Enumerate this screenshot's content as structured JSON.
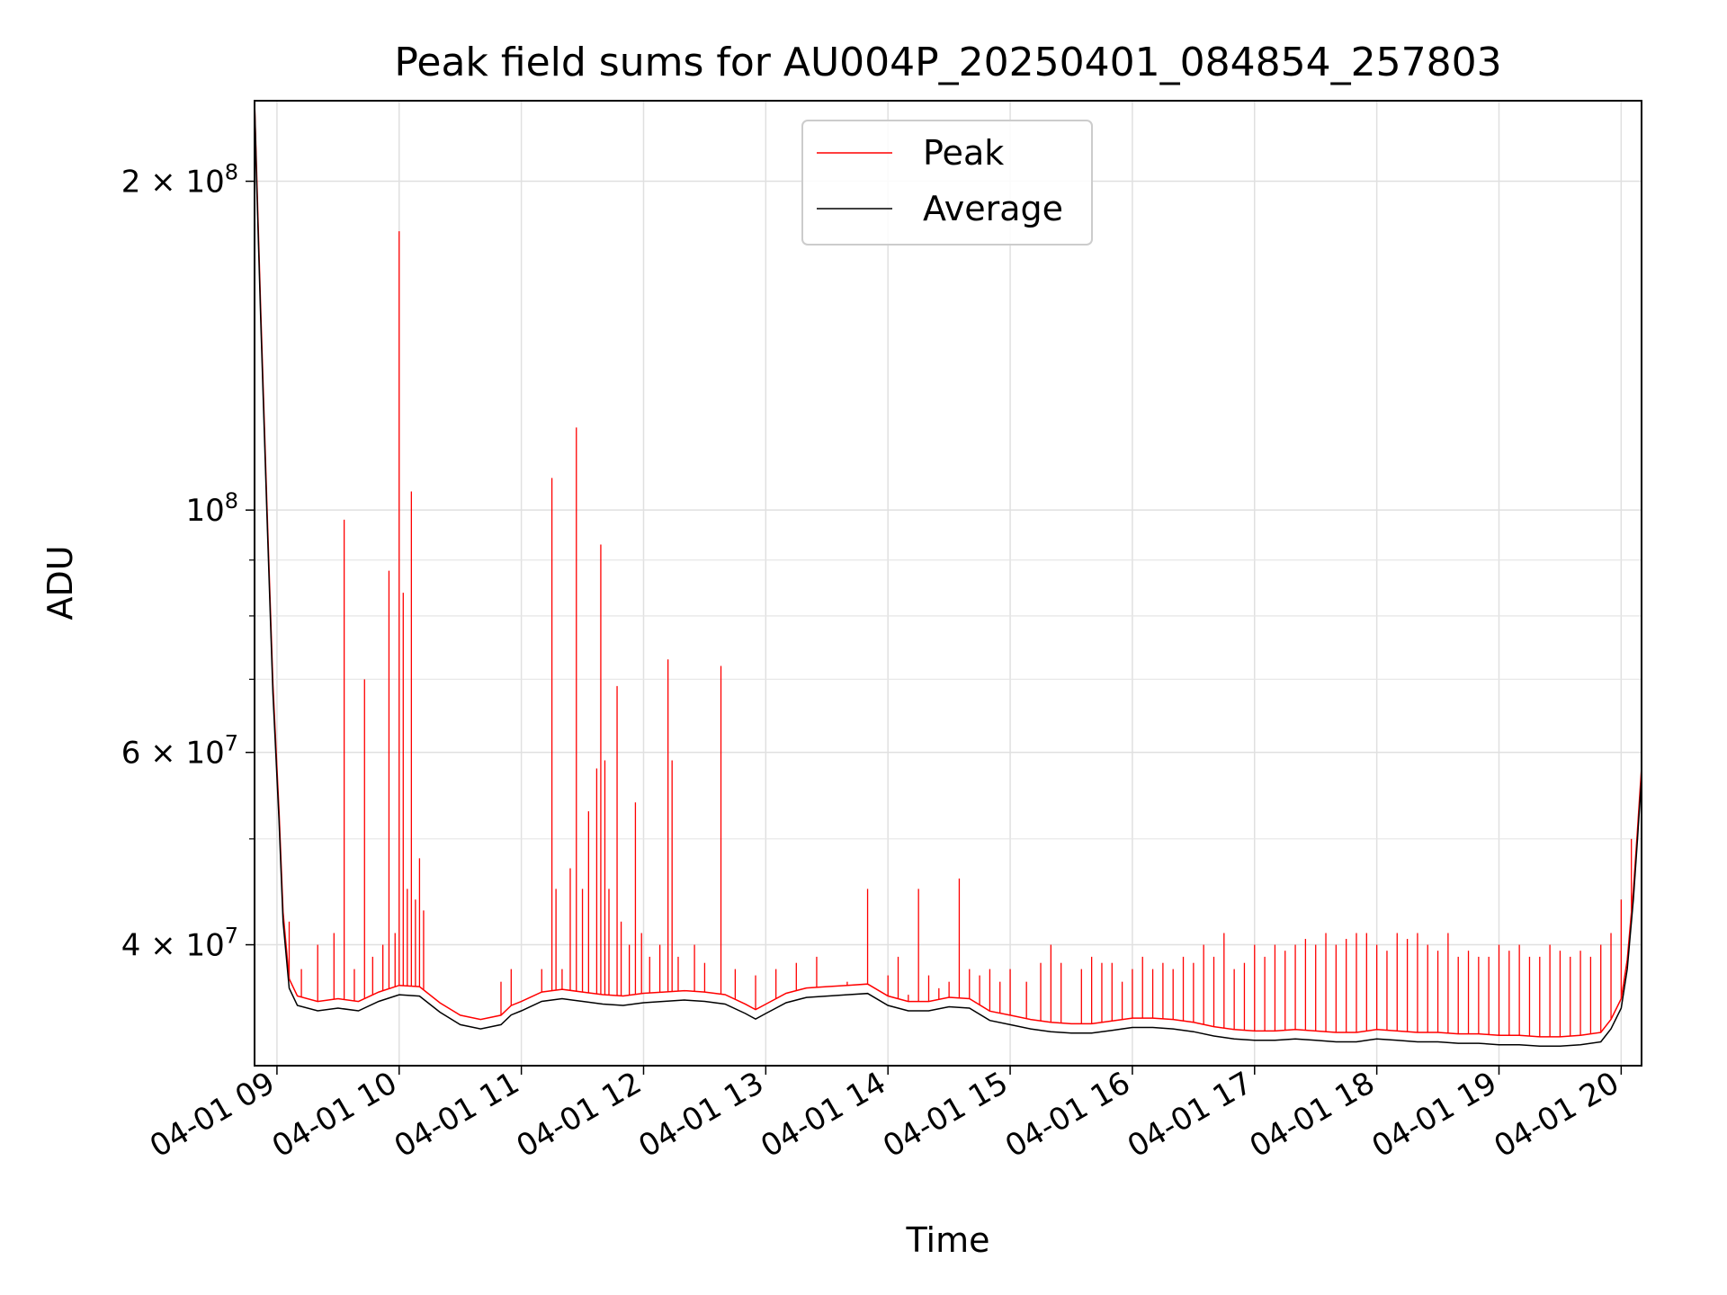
{
  "chart_data": {
    "type": "line",
    "title": "Peak field sums for AU004P_20250401_084854_257803",
    "xlabel": "Time",
    "ylabel": "ADU",
    "y_scale": "log",
    "ylim": [
      31000000,
      237000000
    ],
    "x_range": [
      "2025-04-01 08:49",
      "2025-04-01 20:10"
    ],
    "grid": true,
    "legend_position": "upper center",
    "x_ticks": [
      "04-01 09",
      "04-01 10",
      "04-01 11",
      "04-01 12",
      "04-01 13",
      "04-01 14",
      "04-01 15",
      "04-01 16",
      "04-01 17",
      "04-01 18",
      "04-01 19",
      "04-01 20"
    ],
    "x_tick_hours": [
      9,
      10,
      11,
      12,
      13,
      14,
      15,
      16,
      17,
      18,
      19,
      20
    ],
    "y_major_ticks": [
      {
        "value": 200000000,
        "mantissa": "2",
        "exponent": "8"
      },
      {
        "value": 100000000,
        "mantissa": "",
        "exponent": "8"
      },
      {
        "value": 60000000,
        "mantissa": "6",
        "exponent": "7"
      },
      {
        "value": 40000000,
        "mantissa": "4",
        "exponent": "7"
      }
    ],
    "y_minor_ticks": [
      90000000,
      80000000,
      70000000,
      50000000,
      30000000
    ],
    "series": [
      {
        "name": "Average",
        "color": "#000000",
        "points": [
          [
            "08:49",
            240000000
          ],
          [
            "08:50",
            200000000
          ],
          [
            "08:52",
            150000000
          ],
          [
            "08:55",
            100000000
          ],
          [
            "08:58",
            68000000
          ],
          [
            "09:01",
            52000000
          ],
          [
            "09:03",
            42000000
          ],
          [
            "09:06",
            36500000
          ],
          [
            "09:10",
            35200000
          ],
          [
            "09:20",
            34800000
          ],
          [
            "09:30",
            35000000
          ],
          [
            "09:40",
            34800000
          ],
          [
            "09:50",
            35500000
          ],
          [
            "10:00",
            36000000
          ],
          [
            "10:10",
            35900000
          ],
          [
            "10:20",
            34700000
          ],
          [
            "10:30",
            33800000
          ],
          [
            "10:40",
            33500000
          ],
          [
            "10:50",
            33800000
          ],
          [
            "10:55",
            34500000
          ],
          [
            "11:00",
            34800000
          ],
          [
            "11:10",
            35500000
          ],
          [
            "11:20",
            35700000
          ],
          [
            "11:30",
            35500000
          ],
          [
            "11:40",
            35300000
          ],
          [
            "11:50",
            35200000
          ],
          [
            "12:00",
            35400000
          ],
          [
            "12:10",
            35500000
          ],
          [
            "12:20",
            35600000
          ],
          [
            "12:30",
            35500000
          ],
          [
            "12:40",
            35300000
          ],
          [
            "12:50",
            34600000
          ],
          [
            "12:55",
            34200000
          ],
          [
            "13:00",
            34600000
          ],
          [
            "13:10",
            35400000
          ],
          [
            "13:20",
            35800000
          ],
          [
            "13:30",
            35900000
          ],
          [
            "13:40",
            36000000
          ],
          [
            "13:50",
            36100000
          ],
          [
            "14:00",
            35200000
          ],
          [
            "14:10",
            34800000
          ],
          [
            "14:20",
            34800000
          ],
          [
            "14:30",
            35100000
          ],
          [
            "14:40",
            35000000
          ],
          [
            "14:50",
            34100000
          ],
          [
            "15:00",
            33800000
          ],
          [
            "15:10",
            33500000
          ],
          [
            "15:20",
            33300000
          ],
          [
            "15:30",
            33200000
          ],
          [
            "15:40",
            33200000
          ],
          [
            "15:50",
            33400000
          ],
          [
            "16:00",
            33600000
          ],
          [
            "16:10",
            33600000
          ],
          [
            "16:20",
            33500000
          ],
          [
            "16:30",
            33300000
          ],
          [
            "16:40",
            33000000
          ],
          [
            "16:50",
            32800000
          ],
          [
            "17:00",
            32700000
          ],
          [
            "17:10",
            32700000
          ],
          [
            "17:20",
            32800000
          ],
          [
            "17:30",
            32700000
          ],
          [
            "17:40",
            32600000
          ],
          [
            "17:50",
            32600000
          ],
          [
            "18:00",
            32800000
          ],
          [
            "18:10",
            32700000
          ],
          [
            "18:20",
            32600000
          ],
          [
            "18:30",
            32600000
          ],
          [
            "18:40",
            32500000
          ],
          [
            "18:50",
            32500000
          ],
          [
            "19:00",
            32400000
          ],
          [
            "19:10",
            32400000
          ],
          [
            "19:20",
            32300000
          ],
          [
            "19:30",
            32300000
          ],
          [
            "19:40",
            32400000
          ],
          [
            "19:50",
            32600000
          ],
          [
            "19:55",
            33500000
          ],
          [
            "20:00",
            35000000
          ],
          [
            "20:03",
            38000000
          ],
          [
            "20:06",
            44000000
          ],
          [
            "20:08",
            50000000
          ],
          [
            "20:10",
            57000000
          ]
        ]
      },
      {
        "name": "Peak",
        "color": "#ff0000",
        "baseline_offset": 1.02,
        "spikes": [
          [
            "09:06",
            42000000
          ],
          [
            "09:12",
            38000000
          ],
          [
            "09:20",
            40000000
          ],
          [
            "09:28",
            41000000
          ],
          [
            "09:33",
            98000000
          ],
          [
            "09:38",
            38000000
          ],
          [
            "09:43",
            70000000
          ],
          [
            "09:47",
            39000000
          ],
          [
            "09:52",
            40000000
          ],
          [
            "09:55",
            88000000
          ],
          [
            "09:58",
            41000000
          ],
          [
            "10:00",
            180000000
          ],
          [
            "10:02",
            84000000
          ],
          [
            "10:04",
            45000000
          ],
          [
            "10:06",
            104000000
          ],
          [
            "10:08",
            44000000
          ],
          [
            "10:10",
            48000000
          ],
          [
            "10:12",
            43000000
          ],
          [
            "10:50",
            37000000
          ],
          [
            "10:55",
            38000000
          ],
          [
            "11:10",
            38000000
          ],
          [
            "11:15",
            107000000
          ],
          [
            "11:17",
            45000000
          ],
          [
            "11:20",
            38000000
          ],
          [
            "11:24",
            47000000
          ],
          [
            "11:27",
            119000000
          ],
          [
            "11:30",
            45000000
          ],
          [
            "11:33",
            53000000
          ],
          [
            "11:37",
            58000000
          ],
          [
            "11:39",
            93000000
          ],
          [
            "11:41",
            59000000
          ],
          [
            "11:43",
            45000000
          ],
          [
            "11:47",
            69000000
          ],
          [
            "11:49",
            42000000
          ],
          [
            "11:53",
            40000000
          ],
          [
            "11:56",
            54000000
          ],
          [
            "11:59",
            41000000
          ],
          [
            "12:03",
            39000000
          ],
          [
            "12:08",
            40000000
          ],
          [
            "12:12",
            73000000
          ],
          [
            "12:14",
            59000000
          ],
          [
            "12:17",
            39000000
          ],
          [
            "12:25",
            40000000
          ],
          [
            "12:30",
            38500000
          ],
          [
            "12:38",
            72000000
          ],
          [
            "12:45",
            38000000
          ],
          [
            "12:55",
            37500000
          ],
          [
            "13:05",
            38000000
          ],
          [
            "13:15",
            38500000
          ],
          [
            "13:25",
            39000000
          ],
          [
            "13:40",
            37000000
          ],
          [
            "13:50",
            45000000
          ],
          [
            "14:00",
            37500000
          ],
          [
            "14:05",
            39000000
          ],
          [
            "14:10",
            36000000
          ],
          [
            "14:15",
            45000000
          ],
          [
            "14:20",
            37500000
          ],
          [
            "14:25",
            36500000
          ],
          [
            "14:30",
            37000000
          ],
          [
            "14:35",
            46000000
          ],
          [
            "14:40",
            38000000
          ],
          [
            "14:45",
            37500000
          ],
          [
            "14:50",
            38000000
          ],
          [
            "14:55",
            37000000
          ],
          [
            "15:00",
            38000000
          ],
          [
            "15:08",
            37000000
          ],
          [
            "15:15",
            38500000
          ],
          [
            "15:20",
            40000000
          ],
          [
            "15:25",
            38500000
          ],
          [
            "15:35",
            38000000
          ],
          [
            "15:40",
            39000000
          ],
          [
            "15:45",
            38500000
          ],
          [
            "15:50",
            38500000
          ],
          [
            "15:55",
            37000000
          ],
          [
            "16:00",
            38000000
          ],
          [
            "16:05",
            39000000
          ],
          [
            "16:10",
            38000000
          ],
          [
            "16:15",
            38500000
          ],
          [
            "16:20",
            38000000
          ],
          [
            "16:25",
            39000000
          ],
          [
            "16:30",
            38500000
          ],
          [
            "16:35",
            40000000
          ],
          [
            "16:40",
            39000000
          ],
          [
            "16:45",
            41000000
          ],
          [
            "16:50",
            38000000
          ],
          [
            "16:55",
            38500000
          ],
          [
            "17:00",
            40000000
          ],
          [
            "17:05",
            39000000
          ],
          [
            "17:10",
            40000000
          ],
          [
            "17:15",
            39500000
          ],
          [
            "17:20",
            40000000
          ],
          [
            "17:25",
            40500000
          ],
          [
            "17:30",
            40000000
          ],
          [
            "17:35",
            41000000
          ],
          [
            "17:40",
            40000000
          ],
          [
            "17:45",
            40500000
          ],
          [
            "17:50",
            41000000
          ],
          [
            "17:55",
            41000000
          ],
          [
            "18:00",
            40000000
          ],
          [
            "18:05",
            39500000
          ],
          [
            "18:10",
            41000000
          ],
          [
            "18:15",
            40500000
          ],
          [
            "18:20",
            41000000
          ],
          [
            "18:25",
            40000000
          ],
          [
            "18:30",
            39500000
          ],
          [
            "18:35",
            41000000
          ],
          [
            "18:40",
            39000000
          ],
          [
            "18:45",
            39500000
          ],
          [
            "18:50",
            39000000
          ],
          [
            "18:55",
            39000000
          ],
          [
            "19:00",
            40000000
          ],
          [
            "19:05",
            39500000
          ],
          [
            "19:10",
            40000000
          ],
          [
            "19:15",
            39000000
          ],
          [
            "19:20",
            39000000
          ],
          [
            "19:25",
            40000000
          ],
          [
            "19:30",
            39500000
          ],
          [
            "19:35",
            39000000
          ],
          [
            "19:40",
            39500000
          ],
          [
            "19:45",
            39000000
          ],
          [
            "19:50",
            40000000
          ],
          [
            "19:55",
            41000000
          ],
          [
            "20:00",
            44000000
          ],
          [
            "20:05",
            50000000
          ],
          [
            "20:10",
            58000000
          ]
        ]
      }
    ]
  }
}
